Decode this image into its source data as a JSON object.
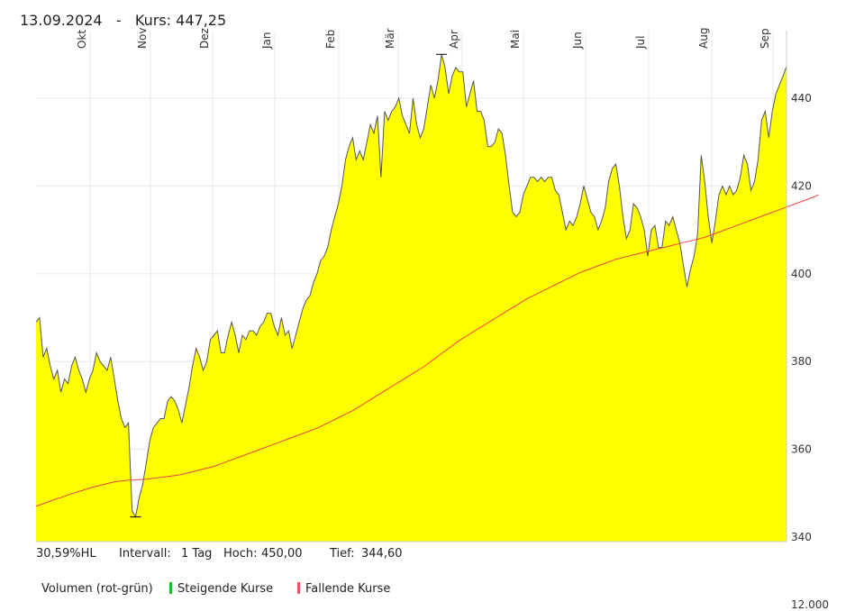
{
  "header": {
    "date": "13.09.2024",
    "separator": "-",
    "price_label": "Kurs:",
    "price": "447,25"
  },
  "stats": {
    "hl": "30,59%HL",
    "interval_label": "Intervall:",
    "interval_value": "1 Tag",
    "high_label": "Hoch:",
    "high_value": "450,00",
    "low_label": "Tief:",
    "low_value": "344,60"
  },
  "legend": {
    "volume_label": "Volumen (rot-grün)",
    "rising_label": "Steigende Kurse",
    "rising_color": "#22bb22",
    "falling_label": "Fallende Kurse",
    "falling_color": "#ee5566"
  },
  "volume_axis_partial": "12.000",
  "chart_data": {
    "type": "area",
    "y_ticks": [
      "340",
      "360",
      "380",
      "400",
      "420",
      "440"
    ],
    "ylim": [
      340,
      451
    ],
    "months": [
      "Okt",
      "Nov",
      "Dez",
      "Jan",
      "Feb",
      "Mär",
      "Apr",
      "Mai",
      "Jun",
      "Jul",
      "Aug",
      "Sep"
    ],
    "grid": true,
    "fill_color": "#ffff00",
    "line_color": "#555555",
    "ma_color": "#ee4444",
    "high_marker": 450.0,
    "low_marker": 344.6,
    "series": [
      {
        "values": [
          389,
          390,
          381,
          383,
          379,
          376,
          378,
          373,
          376,
          375,
          379,
          381,
          378,
          376,
          373,
          376,
          378,
          382,
          380,
          379,
          378,
          381,
          376,
          371,
          367,
          365,
          366,
          346,
          344.6,
          349,
          352,
          357,
          362,
          365,
          366,
          367,
          367,
          371,
          372,
          371,
          369,
          366,
          370,
          374,
          379,
          383,
          381,
          378,
          380,
          385,
          386,
          387,
          382,
          382,
          386,
          389,
          386,
          382,
          386,
          385,
          387,
          387,
          386,
          388,
          389,
          391,
          391,
          388,
          386,
          390,
          386,
          387,
          383,
          386,
          389,
          392,
          394,
          395,
          398,
          400,
          403,
          404,
          406,
          410,
          413,
          416,
          420,
          426,
          429,
          431,
          426,
          428,
          426,
          430,
          434,
          432,
          436,
          422,
          437,
          435,
          437,
          438,
          440,
          436,
          434,
          432,
          440,
          434,
          431,
          433,
          438,
          443,
          440,
          444,
          450,
          447,
          441,
          445,
          447,
          446,
          446,
          438,
          441,
          444,
          437,
          437,
          435,
          429,
          429,
          430,
          433,
          432,
          427,
          420,
          414,
          413,
          414,
          418,
          420,
          422,
          422,
          421,
          422,
          421,
          422,
          422,
          419,
          418,
          414,
          410,
          412,
          411,
          413,
          416,
          420,
          417,
          414,
          413,
          410,
          412,
          415,
          421,
          424,
          425,
          420,
          413,
          408,
          410,
          416,
          415,
          413,
          410,
          404,
          410,
          411,
          406,
          406,
          412,
          411,
          413,
          410,
          407,
          402,
          397,
          401,
          404,
          409,
          427,
          421,
          413,
          407,
          412,
          418,
          420,
          418,
          420,
          418,
          419,
          422,
          427,
          425,
          419,
          421,
          426,
          435,
          437,
          431,
          437,
          441,
          443,
          445,
          447.25
        ],
        "ma": [
          347,
          347.3,
          347.6,
          347.9,
          348.2,
          348.5,
          348.8,
          349,
          349.3,
          349.6,
          349.9,
          350.1,
          350.4,
          350.6,
          350.9,
          351.1,
          351.4,
          351.6,
          351.8,
          352,
          352.2,
          352.4,
          352.6,
          352.7,
          352.8,
          352.9,
          352.95,
          353,
          353.05,
          353.1,
          353.15,
          353.2,
          353.3,
          353.4,
          353.5,
          353.6,
          353.7,
          353.8,
          353.9,
          354,
          354.1,
          354.3,
          354.5,
          354.7,
          354.9,
          355.1,
          355.3,
          355.5,
          355.7,
          355.9,
          356.1,
          356.4,
          356.7,
          357,
          357.3,
          357.6,
          357.9,
          358.2,
          358.5,
          358.8,
          359.1,
          359.4,
          359.7,
          360,
          360.3,
          360.6,
          360.9,
          361.2,
          361.5,
          361.8,
          362.1,
          362.4,
          362.7,
          363,
          363.3,
          363.6,
          363.9,
          364.2,
          364.5,
          364.8,
          365.2,
          365.6,
          366,
          366.4,
          366.8,
          367.2,
          367.6,
          368,
          368.4,
          368.8,
          369.3,
          369.8,
          370.3,
          370.8,
          371.3,
          371.8,
          372.3,
          372.8,
          373.3,
          373.8,
          374.3,
          374.8,
          375.3,
          375.8,
          376.3,
          376.8,
          377.3,
          377.8,
          378.3,
          378.8,
          379.4,
          380,
          380.6,
          381.2,
          381.8,
          382.4,
          383,
          383.6,
          384.2,
          384.8,
          385.3,
          385.8,
          386.3,
          386.8,
          387.3,
          387.8,
          388.3,
          388.8,
          389.3,
          389.8,
          390.3,
          390.8,
          391.3,
          391.8,
          392.3,
          392.8,
          393.3,
          393.8,
          394.3,
          394.7,
          395.1,
          395.5,
          395.9,
          396.3,
          396.7,
          397.1,
          397.5,
          397.9,
          398.3,
          398.7,
          399.1,
          399.5,
          399.9,
          400.3,
          400.6,
          400.9,
          401.2,
          401.5,
          401.8,
          402.1,
          402.4,
          402.7,
          403,
          403.3,
          403.5,
          403.7,
          403.9,
          404.1,
          404.3,
          404.5,
          404.7,
          404.9,
          405.1,
          405.3,
          405.5,
          405.7,
          405.9,
          406.1,
          406.3,
          406.5,
          406.7,
          406.9,
          407.1,
          407.3,
          407.5,
          407.7,
          407.9,
          408.1,
          408.3,
          408.6,
          408.9,
          409.2,
          409.5,
          409.8,
          410.1,
          410.4,
          410.7,
          411,
          411.3,
          411.6,
          411.9,
          412.2,
          412.5,
          412.8,
          413.1,
          413.4,
          413.7,
          414,
          414.3,
          414.6,
          414.9,
          415.2,
          415.5,
          415.8,
          416.1,
          416.4,
          416.7,
          417,
          417.3,
          417.6,
          418
        ]
      }
    ]
  }
}
